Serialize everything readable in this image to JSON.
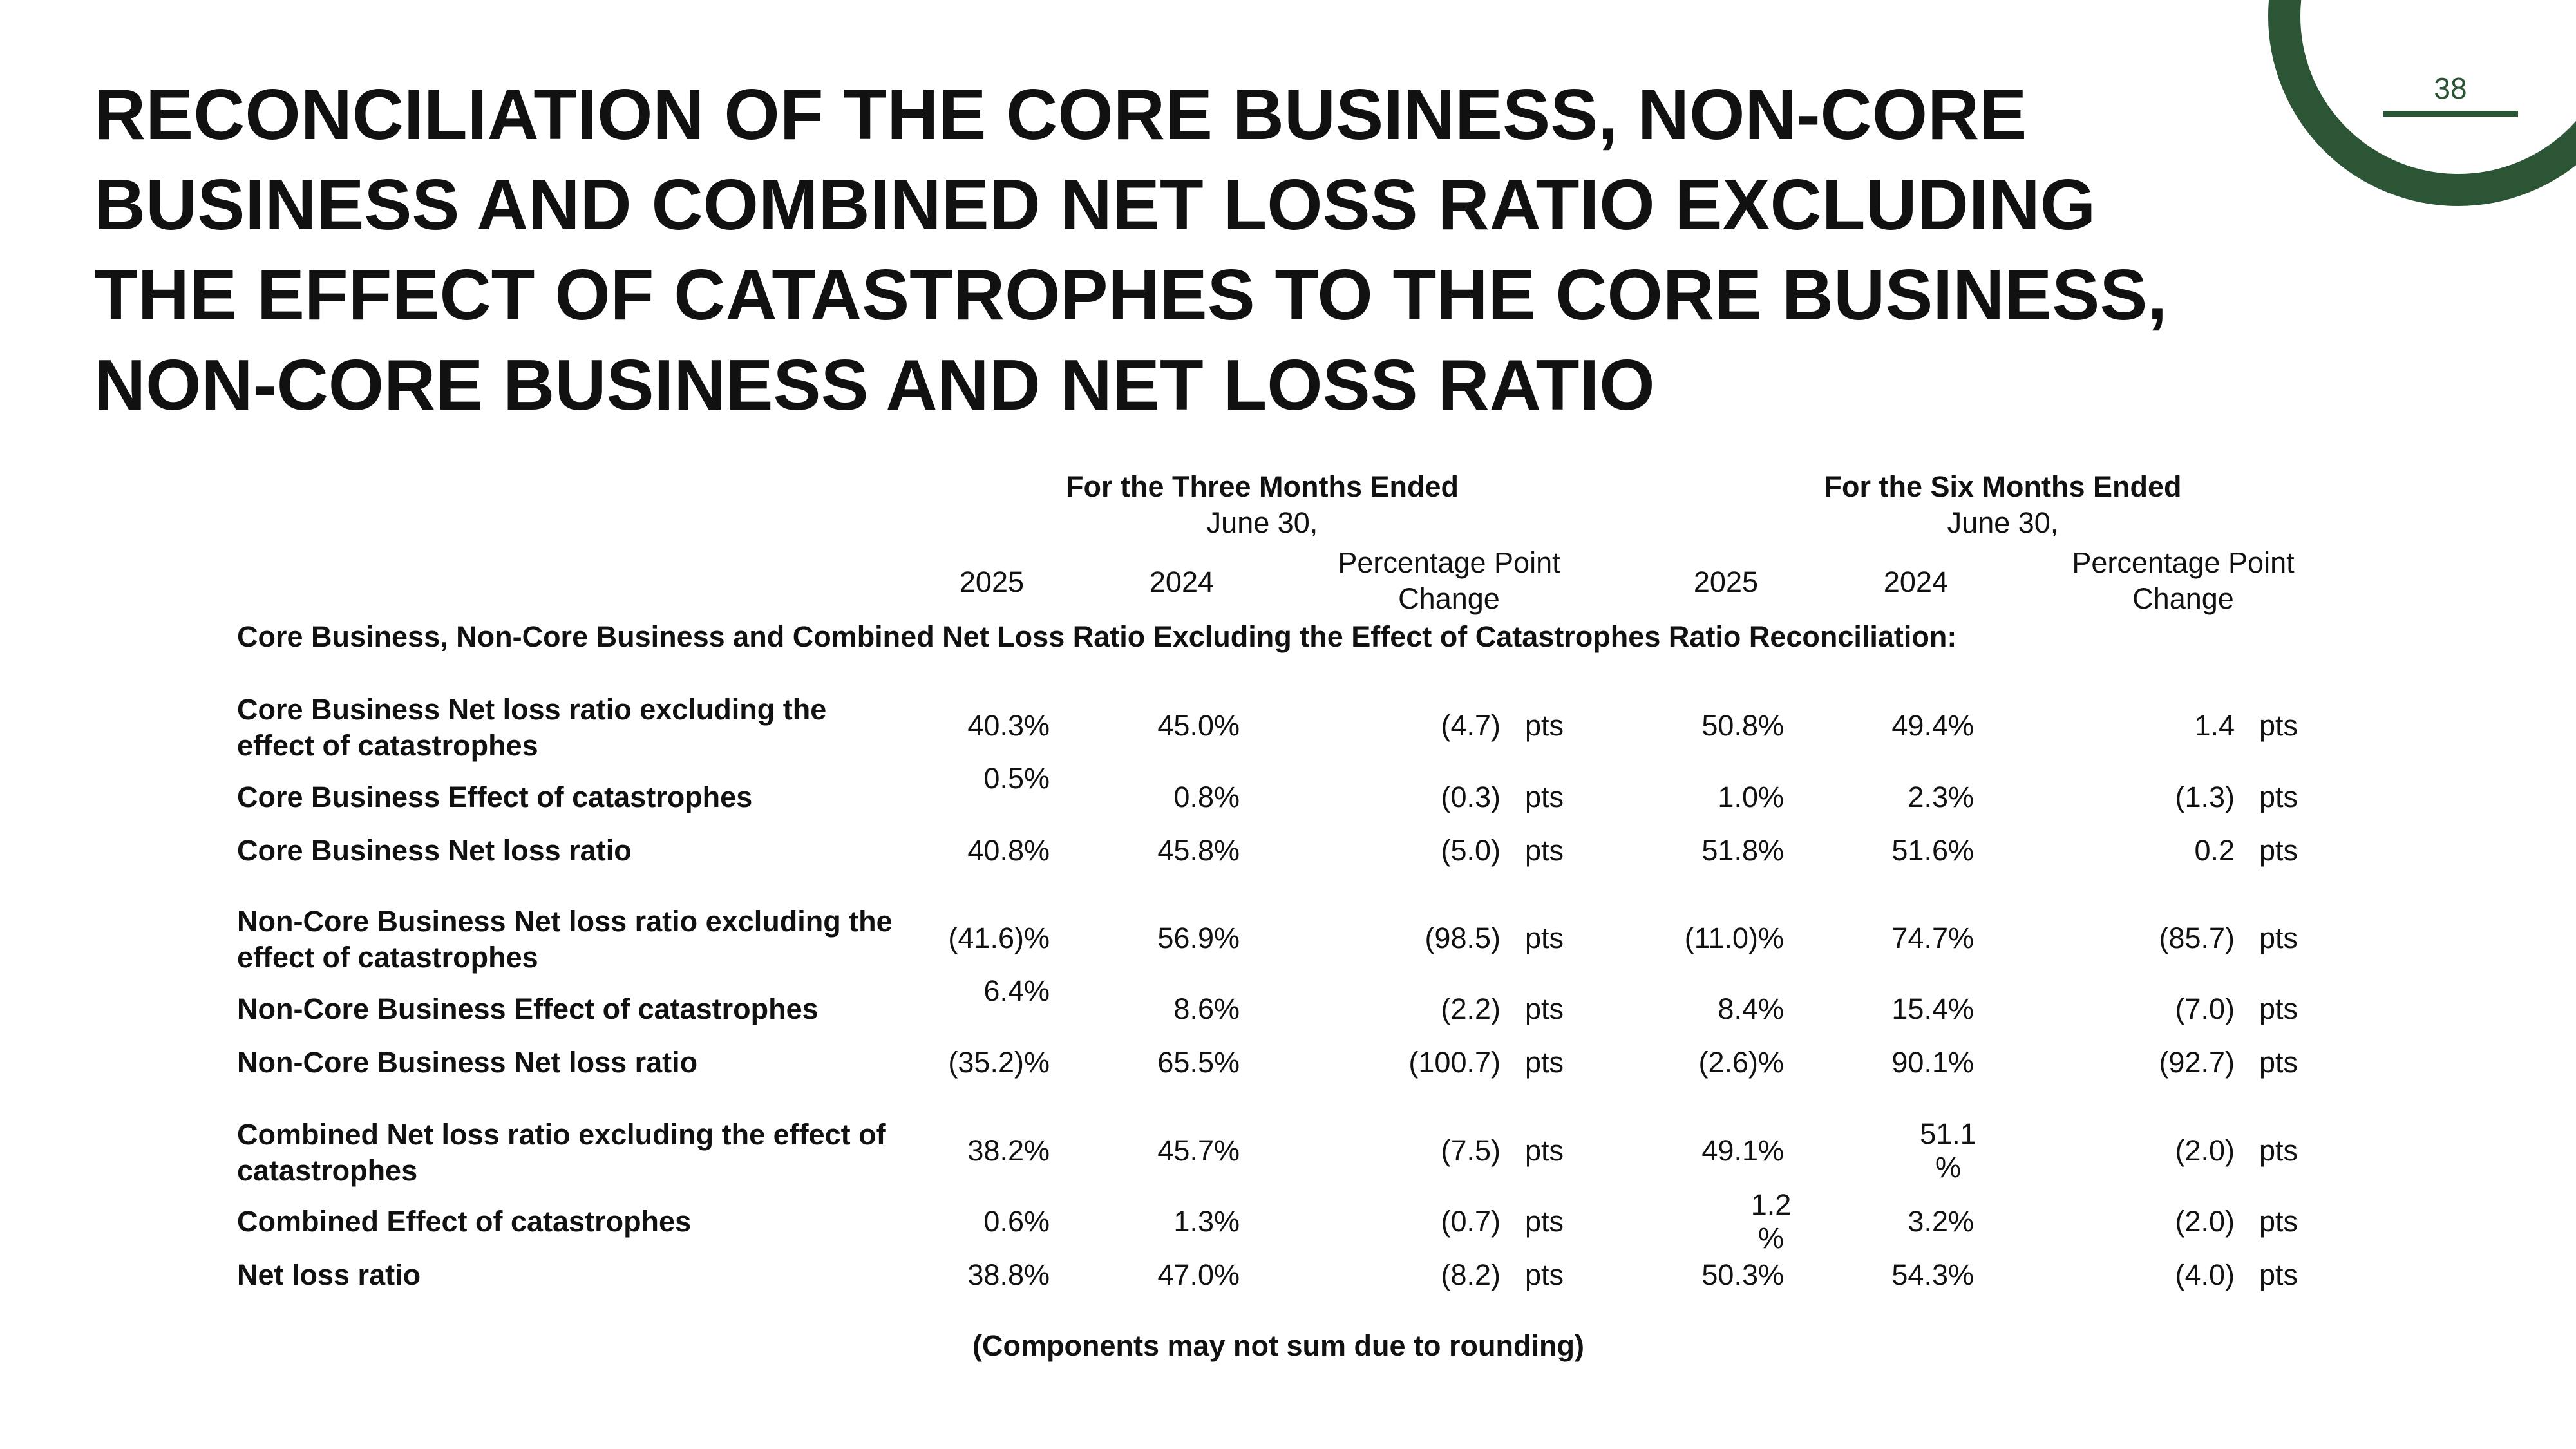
{
  "page_number": "38",
  "title_lines": [
    "RECONCILIATION OF THE CORE BUSINESS, NON-CORE",
    "BUSINESS AND COMBINED NET LOSS RATIO EXCLUDING",
    "THE EFFECT OF CATASTROPHES TO THE CORE BUSINESS,",
    "NON-CORE BUSINESS AND NET LOSS RATIO"
  ],
  "periods": {
    "three_months": {
      "title": "For the Three Months Ended",
      "subtitle": "June 30,"
    },
    "six_months": {
      "title": "For the Six Months Ended",
      "subtitle": "June 30,"
    }
  },
  "columns": {
    "y2025": "2025",
    "y2024": "2024",
    "change_line1": "Percentage Point",
    "change_line2": "Change"
  },
  "section_heading": "Core Business, Non-Core Business and Combined Net Loss Ratio Excluding the Effect of Catastrophes Ratio Reconciliation:",
  "unit": "pts",
  "rows": [
    {
      "label1": "Core Business Net loss ratio excluding the",
      "label2": "effect of catastrophes",
      "q25": "40.3%",
      "q24": "45.0%",
      "qchg": "(4.7)",
      "s25": "50.8%",
      "s24": "49.4%",
      "schg": "1.4"
    },
    {
      "label1": "Core Business Effect of catastrophes",
      "q25": "0.5%",
      "q24": "0.8%",
      "qchg": "(0.3)",
      "s25": "1.0%",
      "s24": "2.3%",
      "schg": "(1.3)"
    },
    {
      "label1": "Core Business Net loss ratio",
      "q25": "40.8%",
      "q24": "45.8%",
      "qchg": "(5.0)",
      "s25": "51.8%",
      "s24": "51.6%",
      "schg": "0.2"
    },
    {
      "label1": "Non-Core Business Net loss ratio excluding the",
      "label2": "effect of catastrophes",
      "q25": "(41.6)%",
      "q24": "56.9%",
      "qchg": "(98.5)",
      "s25": "(11.0)%",
      "s24": "74.7%",
      "schg": "(85.7)"
    },
    {
      "label1": "Non-Core Business Effect of catastrophes",
      "q25": "6.4%",
      "q24": "8.6%",
      "qchg": "(2.2)",
      "s25": "8.4%",
      "s24": "15.4%",
      "schg": "(7.0)"
    },
    {
      "label1": "Non-Core Business Net loss ratio",
      "q25": "(35.2)%",
      "q24": "65.5%",
      "qchg": "(100.7)",
      "s25": "(2.6)%",
      "s24": "90.1%",
      "schg": "(92.7)"
    },
    {
      "label1": "Combined Net loss ratio excluding the effect of",
      "label2": "catastrophes",
      "q25": "38.2%",
      "q24": "45.7%",
      "qchg": "(7.5)",
      "s25": "49.1%",
      "s24a": "51.1",
      "s24b": "%",
      "schg": "(2.0)"
    },
    {
      "label1": "Combined Effect of catastrophes",
      "q25": "0.6%",
      "q24": "1.3%",
      "qchg": "(0.7)",
      "s25a": "1.2",
      "s25b": "%",
      "s24": "3.2%",
      "schg": "(2.0)"
    },
    {
      "label1": "Net loss ratio",
      "q25": "38.8%",
      "q24": "47.0%",
      "qchg": "(8.2)",
      "s25": "50.3%",
      "s24": "54.3%",
      "schg": "(4.0)"
    }
  ],
  "footnote": "(Components may not sum due to rounding)",
  "colors": {
    "accent": "#2c5536",
    "text": "#111111",
    "background": "#ffffff"
  }
}
